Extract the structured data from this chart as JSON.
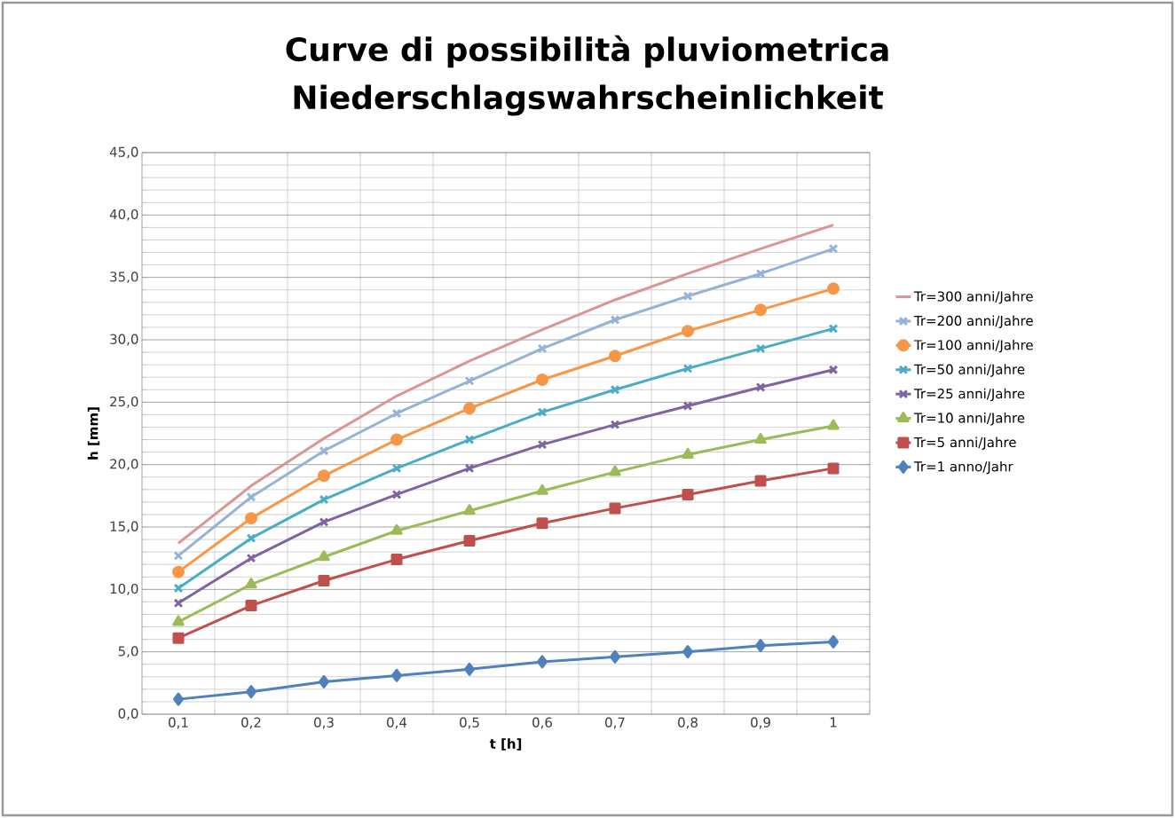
{
  "chart_data": {
    "type": "line",
    "title": "Curve di possibilità pluviometrica",
    "subtitle": "Niederschlagswahrscheinlichkeit",
    "xlabel": "t [h]",
    "ylabel": "h [mm]",
    "categories": [
      "0,1",
      "0,2",
      "0,3",
      "0,4",
      "0,5",
      "0,6",
      "0,7",
      "0,8",
      "0,9",
      "1"
    ],
    "ylim": [
      0,
      45
    ],
    "yticks": [
      {
        "value": 0,
        "label": "0,0"
      },
      {
        "value": 5,
        "label": "5,0"
      },
      {
        "value": 10,
        "label": "10,0"
      },
      {
        "value": 15,
        "label": "15,0"
      },
      {
        "value": 20,
        "label": "20,0"
      },
      {
        "value": 25,
        "label": "25,0"
      },
      {
        "value": 30,
        "label": "30,0"
      },
      {
        "value": 35,
        "label": "35,0"
      },
      {
        "value": 40,
        "label": "40,0"
      },
      {
        "value": 45,
        "label": "45,0"
      }
    ],
    "grid": true,
    "legend": "right",
    "line_style": "solid",
    "series": [
      {
        "name": "Tr=300 anni/Jahre",
        "color": "#d99694",
        "marker": "none",
        "values": [
          13.7,
          18.3,
          22.1,
          25.5,
          28.3,
          30.8,
          33.2,
          35.3,
          37.3,
          39.2
        ]
      },
      {
        "name": "Tr=200 anni/Jahre",
        "color": "#95b3d7",
        "marker": "cross",
        "values": [
          12.7,
          17.4,
          21.1,
          24.1,
          26.7,
          29.3,
          31.6,
          33.5,
          35.3,
          37.3
        ]
      },
      {
        "name": "Tr=100 anni/Jahre",
        "color": "#f79646",
        "marker": "circle",
        "values": [
          11.4,
          15.7,
          19.1,
          22.0,
          24.5,
          26.8,
          28.7,
          30.7,
          32.4,
          34.1
        ]
      },
      {
        "name": "Tr=50 anni/Jahre",
        "color": "#4bacc6",
        "marker": "cross",
        "values": [
          10.1,
          14.1,
          17.2,
          19.7,
          22.0,
          24.2,
          26.0,
          27.7,
          29.3,
          30.9
        ]
      },
      {
        "name": "Tr=25 anni/Jahre",
        "color": "#8064a2",
        "marker": "cross",
        "values": [
          8.9,
          12.5,
          15.4,
          17.6,
          19.7,
          21.6,
          23.2,
          24.7,
          26.2,
          27.6
        ]
      },
      {
        "name": "Tr=10 anni/Jahre",
        "color": "#9bbb59",
        "marker": "triangle",
        "values": [
          7.4,
          10.4,
          12.6,
          14.7,
          16.3,
          17.9,
          19.4,
          20.8,
          22.0,
          23.1
        ]
      },
      {
        "name": "Tr=5 anni/Jahre",
        "color": "#c0504d",
        "marker": "square",
        "values": [
          6.1,
          8.7,
          10.7,
          12.4,
          13.9,
          15.3,
          16.5,
          17.6,
          18.7,
          19.7
        ]
      },
      {
        "name": "Tr=1 anno/Jahr",
        "color": "#4f81bd",
        "marker": "diamond",
        "values": [
          1.2,
          1.8,
          2.6,
          3.1,
          3.6,
          4.2,
          4.6,
          5.0,
          5.5,
          5.8
        ]
      }
    ]
  }
}
